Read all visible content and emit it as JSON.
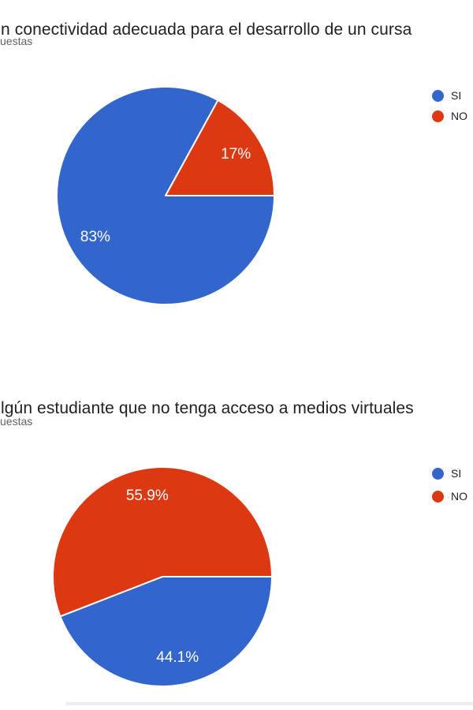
{
  "theme": {
    "background": "#ffffff",
    "title_color": "#202124",
    "subtitle_color": "#5f6368",
    "legend_text_color": "#202124",
    "pie_label_color": "#ffffff",
    "slice_separator_color": "#ffffff",
    "divider_color": "#ededed",
    "accent_blue": "#3366CC",
    "accent_red": "#DC3912"
  },
  "chart_data": [
    {
      "type": "pie",
      "title": "n conectividad adecuada para el desarrollo de un cursa",
      "subtitle": "uestas",
      "labels": [
        "SI",
        "NO"
      ],
      "values": [
        83,
        17
      ],
      "value_labels": [
        "83%",
        "17%"
      ],
      "colors": [
        "#3366CC",
        "#DC3912"
      ],
      "label_color": "#ffffff",
      "start_angle_deg": 90,
      "direction": "clockwise",
      "legend_position": "right",
      "legend_marker": "circle"
    },
    {
      "type": "pie",
      "title": "lgún estudiante que no tenga acceso a medios virtuales",
      "subtitle": "uestas",
      "labels": [
        "SI",
        "NO"
      ],
      "values": [
        44.1,
        55.9
      ],
      "value_labels": [
        "44.1%",
        "55.9%"
      ],
      "colors": [
        "#3366CC",
        "#DC3912"
      ],
      "label_color": "#ffffff",
      "start_angle_deg": 90,
      "direction": "clockwise",
      "legend_position": "right",
      "legend_marker": "circle"
    }
  ]
}
